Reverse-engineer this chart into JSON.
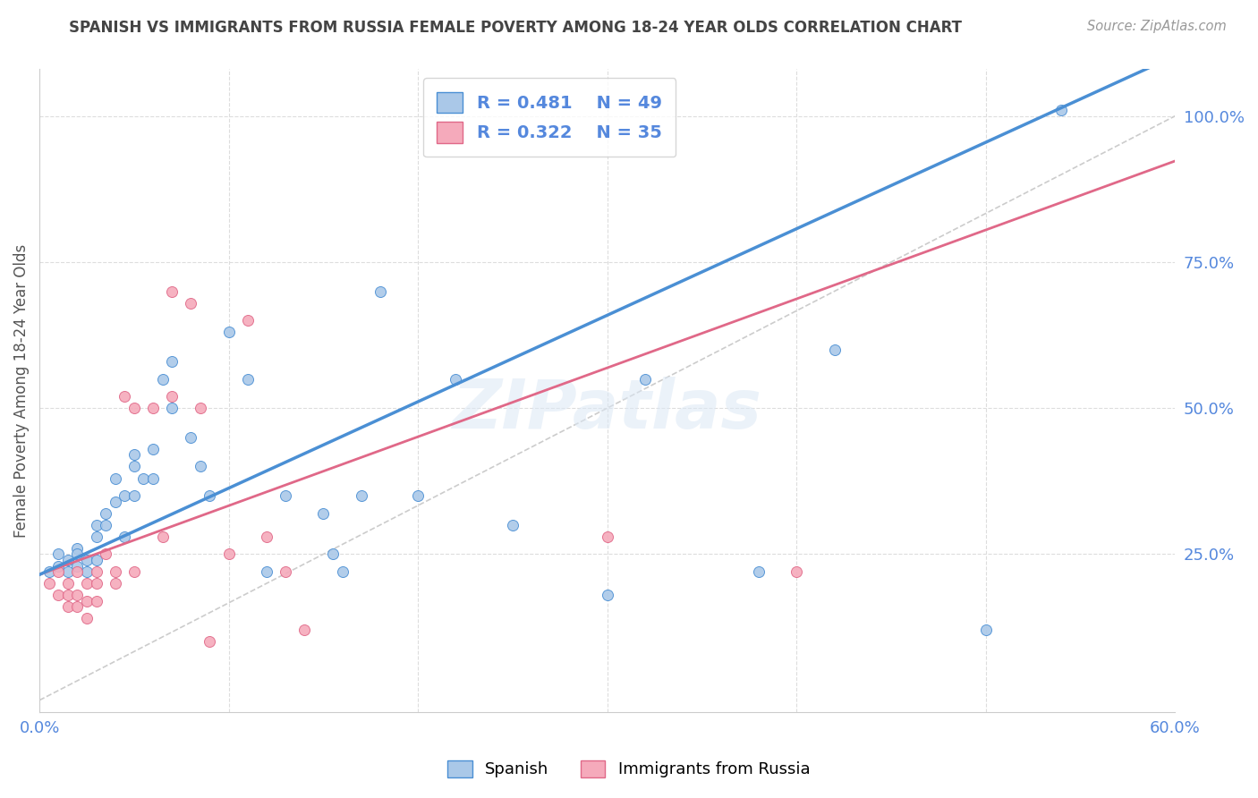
{
  "title": "SPANISH VS IMMIGRANTS FROM RUSSIA FEMALE POVERTY AMONG 18-24 YEAR OLDS CORRELATION CHART",
  "source": "Source: ZipAtlas.com",
  "ylabel": "Female Poverty Among 18-24 Year Olds",
  "xlim": [
    0.0,
    0.6
  ],
  "ylim": [
    -0.02,
    1.08
  ],
  "legend_r1": "R = 0.481",
  "legend_n1": "N = 49",
  "legend_r2": "R = 0.322",
  "legend_n2": "N = 35",
  "color_spanish": "#aac8e8",
  "color_russia": "#f5aabb",
  "color_line_spanish": "#4a8fd4",
  "color_line_russia": "#e06888",
  "color_axis_text": "#5588dd",
  "color_title": "#444444",
  "watermark": "ZIPatlas",
  "spanish_x": [
    0.005,
    0.01,
    0.01,
    0.015,
    0.015,
    0.02,
    0.02,
    0.02,
    0.025,
    0.025,
    0.03,
    0.03,
    0.03,
    0.035,
    0.035,
    0.04,
    0.04,
    0.045,
    0.045,
    0.05,
    0.05,
    0.05,
    0.055,
    0.06,
    0.06,
    0.065,
    0.07,
    0.07,
    0.08,
    0.085,
    0.09,
    0.1,
    0.11,
    0.12,
    0.13,
    0.15,
    0.155,
    0.16,
    0.17,
    0.18,
    0.2,
    0.22,
    0.25,
    0.3,
    0.32,
    0.38,
    0.42,
    0.5,
    0.54
  ],
  "spanish_y": [
    0.22,
    0.25,
    0.23,
    0.24,
    0.22,
    0.26,
    0.25,
    0.23,
    0.24,
    0.22,
    0.3,
    0.28,
    0.24,
    0.32,
    0.3,
    0.38,
    0.34,
    0.35,
    0.28,
    0.4,
    0.42,
    0.35,
    0.38,
    0.43,
    0.38,
    0.55,
    0.58,
    0.5,
    0.45,
    0.4,
    0.35,
    0.63,
    0.55,
    0.22,
    0.35,
    0.32,
    0.25,
    0.22,
    0.35,
    0.7,
    0.35,
    0.55,
    0.3,
    0.18,
    0.55,
    0.22,
    0.6,
    0.12,
    1.01
  ],
  "russia_x": [
    0.005,
    0.01,
    0.01,
    0.015,
    0.015,
    0.015,
    0.02,
    0.02,
    0.02,
    0.025,
    0.025,
    0.025,
    0.03,
    0.03,
    0.03,
    0.035,
    0.04,
    0.04,
    0.045,
    0.05,
    0.05,
    0.06,
    0.065,
    0.07,
    0.07,
    0.08,
    0.085,
    0.09,
    0.1,
    0.11,
    0.12,
    0.13,
    0.14,
    0.3,
    0.4
  ],
  "russia_y": [
    0.2,
    0.22,
    0.18,
    0.2,
    0.18,
    0.16,
    0.22,
    0.18,
    0.16,
    0.2,
    0.17,
    0.14,
    0.22,
    0.2,
    0.17,
    0.25,
    0.22,
    0.2,
    0.52,
    0.22,
    0.5,
    0.5,
    0.28,
    0.7,
    0.52,
    0.68,
    0.5,
    0.1,
    0.25,
    0.65,
    0.28,
    0.22,
    0.12,
    0.28,
    0.22
  ],
  "figsize": [
    14.06,
    8.92
  ],
  "dpi": 100,
  "reg_spanish_m": 1.48,
  "reg_spanish_b": 0.215,
  "reg_russia_m": 1.18,
  "reg_russia_b": 0.215
}
